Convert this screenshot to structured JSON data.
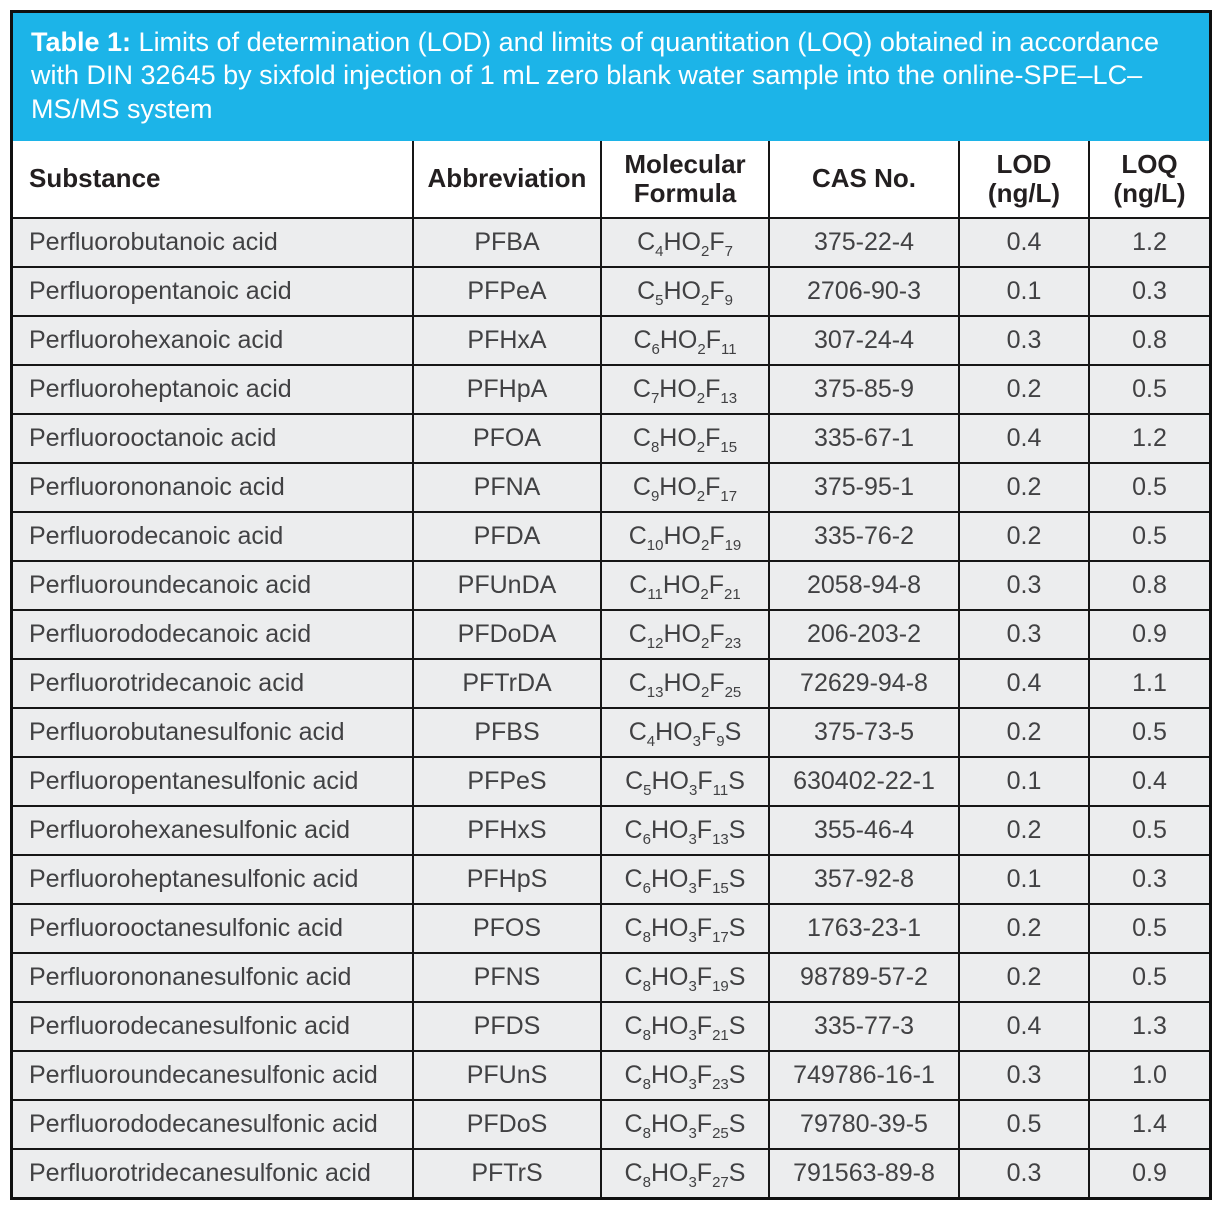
{
  "caption": {
    "label": "Table 1:",
    "text": "Limits of determination (LOD) and limits of quantitation (LOQ) obtained in accordance with DIN 32645 by sixfold injection of 1 mL zero blank water sample into the online-SPE–LC–MS/MS system"
  },
  "colors": {
    "accent_cyan": "#1cb4e8",
    "row_background": "#ecedee",
    "border": "#161616",
    "header_text": "#231f20",
    "body_text": "#414143"
  },
  "table": {
    "columns": [
      {
        "key": "substance",
        "label": "Substance"
      },
      {
        "key": "abbreviation",
        "label": "Abbreviation"
      },
      {
        "key": "formula",
        "label": "Molecular\nFormula"
      },
      {
        "key": "cas",
        "label": "CAS No."
      },
      {
        "key": "lod",
        "label": "LOD\n(ng/L)"
      },
      {
        "key": "loq",
        "label": "LOQ\n(ng/L)"
      }
    ],
    "rows": [
      {
        "substance": "Perfluorobutanoic acid",
        "abbreviation": "PFBA",
        "formula": "C{4}HO{2}F{7}",
        "cas": "375-22-4",
        "lod": "0.4",
        "loq": "1.2"
      },
      {
        "substance": "Perfluoropentanoic acid",
        "abbreviation": "PFPeA",
        "formula": "C{5}HO{2}F{9}",
        "cas": "2706-90-3",
        "lod": "0.1",
        "loq": "0.3"
      },
      {
        "substance": "Perfluorohexanoic acid",
        "abbreviation": "PFHxA",
        "formula": "C{6}HO{2}F{11}",
        "cas": "307-24-4",
        "lod": "0.3",
        "loq": "0.8"
      },
      {
        "substance": "Perfluoroheptanoic acid",
        "abbreviation": "PFHpA",
        "formula": "C{7}HO{2}F{13}",
        "cas": "375-85-9",
        "lod": "0.2",
        "loq": "0.5"
      },
      {
        "substance": "Perfluorooctanoic acid",
        "abbreviation": "PFOA",
        "formula": "C{8}HO{2}F{15}",
        "cas": "335-67-1",
        "lod": "0.4",
        "loq": "1.2"
      },
      {
        "substance": "Perfluorononanoic acid",
        "abbreviation": "PFNA",
        "formula": "C{9}HO{2}F{17}",
        "cas": "375-95-1",
        "lod": "0.2",
        "loq": "0.5"
      },
      {
        "substance": "Perfluorodecanoic acid",
        "abbreviation": "PFDA",
        "formula": "C{10}HO{2}F{19}",
        "cas": "335-76-2",
        "lod": "0.2",
        "loq": "0.5"
      },
      {
        "substance": "Perfluoroundecanoic acid",
        "abbreviation": "PFUnDA",
        "formula": "C{11}HO{2}F{21}",
        "cas": "2058-94-8",
        "lod": "0.3",
        "loq": "0.8"
      },
      {
        "substance": "Perfluorododecanoic acid",
        "abbreviation": "PFDoDA",
        "formula": "C{12}HO{2}F{23}",
        "cas": "206-203-2",
        "lod": "0.3",
        "loq": "0.9"
      },
      {
        "substance": "Perfluorotridecanoic acid",
        "abbreviation": "PFTrDA",
        "formula": "C{13}HO{2}F{25}",
        "cas": "72629-94-8",
        "lod": "0.4",
        "loq": "1.1"
      },
      {
        "substance": "Perfluorobutanesulfonic acid",
        "abbreviation": "PFBS",
        "formula": "C{4}HO{3}F{9}S",
        "cas": "375-73-5",
        "lod": "0.2",
        "loq": "0.5"
      },
      {
        "substance": "Perfluoropentanesulfonic acid",
        "abbreviation": "PFPeS",
        "formula": "C{5}HO{3}F{11}S",
        "cas": "630402-22-1",
        "lod": "0.1",
        "loq": "0.4"
      },
      {
        "substance": "Perfluorohexanesulfonic acid",
        "abbreviation": "PFHxS",
        "formula": "C{6}HO{3}F{13}S",
        "cas": "355-46-4",
        "lod": "0.2",
        "loq": "0.5"
      },
      {
        "substance": "Perfluoroheptanesulfonic acid",
        "abbreviation": "PFHpS",
        "formula": "C{6}HO{3}F{15}S",
        "cas": "357-92-8",
        "lod": "0.1",
        "loq": "0.3"
      },
      {
        "substance": "Perfluorooctanesulfonic acid",
        "abbreviation": "PFOS",
        "formula": "C{8}HO{3}F{17}S",
        "cas": "1763-23-1",
        "lod": "0.2",
        "loq": "0.5"
      },
      {
        "substance": "Perfluorononanesulfonic acid",
        "abbreviation": "PFNS",
        "formula": "C{8}HO{3}F{19}S",
        "cas": "98789-57-2",
        "lod": "0.2",
        "loq": "0.5"
      },
      {
        "substance": "Perfluorodecanesulfonic acid",
        "abbreviation": "PFDS",
        "formula": "C{8}HO{3}F{21}S",
        "cas": "335-77-3",
        "lod": "0.4",
        "loq": "1.3"
      },
      {
        "substance": "Perfluoroundecanesulfonic acid",
        "abbreviation": "PFUnS",
        "formula": "C{8}HO{3}F{23}S",
        "cas": "749786-16-1",
        "lod": "0.3",
        "loq": "1.0"
      },
      {
        "substance": "Perfluorododecanesulfonic acid",
        "abbreviation": "PFDoS",
        "formula": "C{8}HO{3}F{25}S",
        "cas": "79780-39-5",
        "lod": "0.5",
        "loq": "1.4"
      },
      {
        "substance": "Perfluorotridecanesulfonic acid",
        "abbreviation": "PFTrS",
        "formula": "C{8}HO{3}F{27}S",
        "cas": "791563-89-8",
        "lod": "0.3",
        "loq": "0.9"
      }
    ]
  }
}
